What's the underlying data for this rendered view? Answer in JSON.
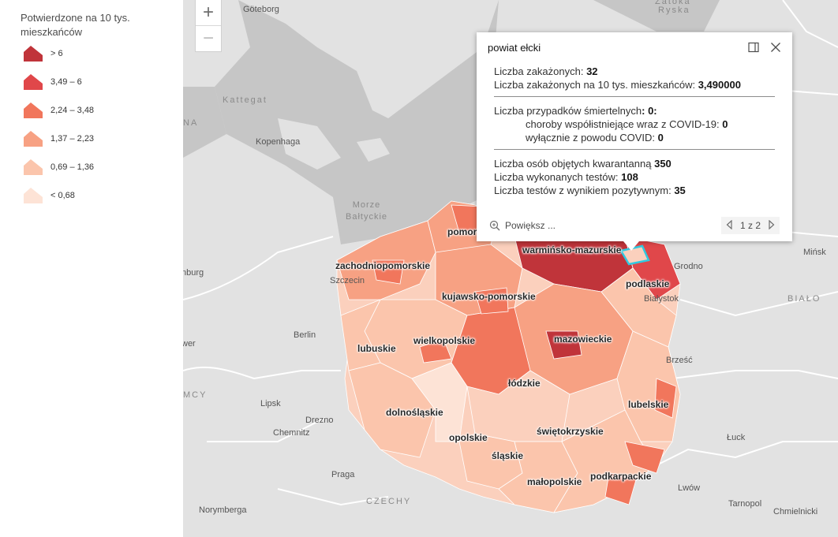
{
  "legend": {
    "title": "Potwierdzone na 10 tys. mieszkańców",
    "items": [
      {
        "label": "> 6",
        "color": "#c0343a"
      },
      {
        "label": "3,49 – 6",
        "color": "#e0474a"
      },
      {
        "label": "2,24 – 3,48",
        "color": "#f1765c"
      },
      {
        "label": "1,37 – 2,23",
        "color": "#f7a183"
      },
      {
        "label": "0,69 – 1,36",
        "color": "#fbc5ac"
      },
      {
        "label": "< 0,68",
        "color": "#fde3d6"
      }
    ]
  },
  "zoom": {
    "in": "+",
    "out": "−"
  },
  "map_labels": {
    "goteborg": "Göteborg",
    "kattegat": "Kattegat",
    "kopenhaga": "Kopenhaga",
    "morze": "Morze",
    "baltyckie": "Bałtyckie",
    "burg": "nburg",
    "berlin": "Berlin",
    "wer": "wer",
    "mcy": "MCY",
    "lipsk": "Lipsk",
    "drezno": "Drezno",
    "chemnitz": "Chemnitz",
    "praga": "Praga",
    "czechy": "CZECHY",
    "norymberga": "Norymberga",
    "minsk": "Mińsk",
    "bialo": "BIAŁO",
    "grodno": "Grodno",
    "brzesc": "Brześć",
    "luck": "Łuck",
    "lwow": "Lwów",
    "tarnopol": "Tarnopol",
    "chmielnicki": "Chmielnicki",
    "ryska": "Ryska",
    "zatoka": "Zatoka",
    "na": "NA",
    "szczecin": "Szczecin",
    "bialystok": "Białystok"
  },
  "regions": {
    "pomorskie": "pomorskie",
    "warminsko": "warmińsko-mazurskie",
    "zachodnio": "zachodniopomorskie",
    "podlaskie": "podlaskie",
    "kujawsko": "kujawsko-pomorskie",
    "mazowieckie": "mazowieckie",
    "lubuskie": "lubuskie",
    "wielkopolskie": "wielkopolskie",
    "lodzkie": "łódzkie",
    "lubelskie": "lubelskie",
    "dolnoslaskie": "dolnośląskie",
    "swietokrzyskie": "świętokrzyskie",
    "opolskie": "opolskie",
    "slaskie": "śląskie",
    "malopolskie": "małopolskie",
    "podkarpackie": "podkarpackie"
  },
  "popup": {
    "title": "powiat ełcki",
    "l1_label": "Liczba zakażonych:",
    "l1_value": "32",
    "l2_label": "Liczba zakażonych na 10 tys. mieszkańców:",
    "l2_value": "3,490000",
    "l3_label": "Liczba przypadków śmiertelnych",
    "l3_value": ": 0:",
    "l4_label": "choroby współistniejące wraz z COVID-19:",
    "l4_value": "0",
    "l5_label": "wyłącznie z powodu COVID:",
    "l5_value": "0",
    "l6_label": "Liczba osób objętych kwarantanną",
    "l6_value": "350",
    "l7_label": "Liczba wykonanych testów:",
    "l7_value": "108",
    "l8_label": "Liczba testów z wynikiem pozytywnym:",
    "l8_value": "35",
    "zoom_to": "Powiększ ...",
    "pager": "1 z 2"
  }
}
